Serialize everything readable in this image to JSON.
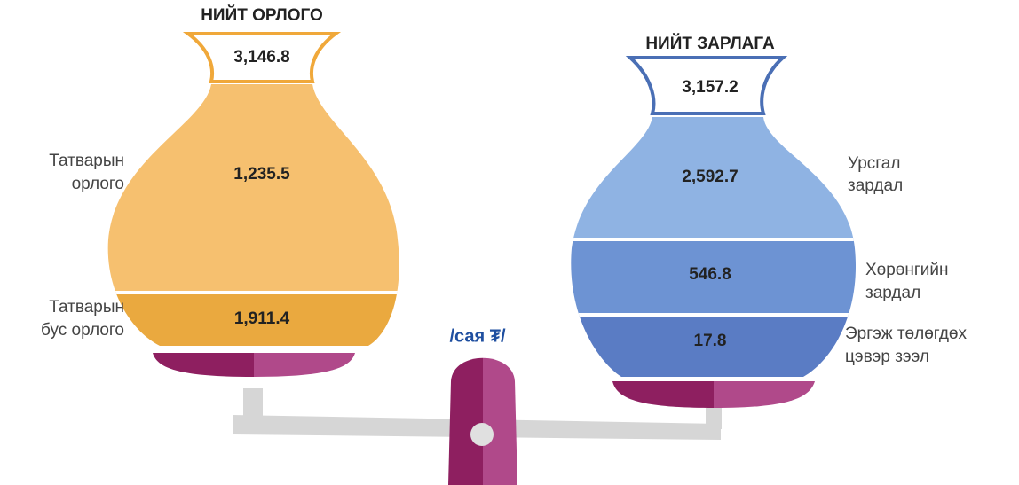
{
  "unit": "/сая ₮/",
  "income": {
    "title": "НИЙТ ОРЛОГО",
    "total": "3,146.8",
    "parts": [
      {
        "label": [
          "Татварын",
          "орлого"
        ],
        "value": "1,235.5"
      },
      {
        "label": [
          "Татварын",
          "бус орлого"
        ],
        "value": "1,911.4"
      }
    ]
  },
  "expense": {
    "title": "НИЙТ ЗАРЛАГА",
    "total": "3,157.2",
    "parts": [
      {
        "label": [
          "Урсгал",
          "зардал"
        ],
        "value": "2,592.7"
      },
      {
        "label": [
          "Хөрөнгийн",
          "зардал"
        ],
        "value": "546.8"
      },
      {
        "label": [
          "Эргэж төлөгдөх",
          "цэвэр зээл"
        ],
        "value": "17.8"
      }
    ]
  }
}
